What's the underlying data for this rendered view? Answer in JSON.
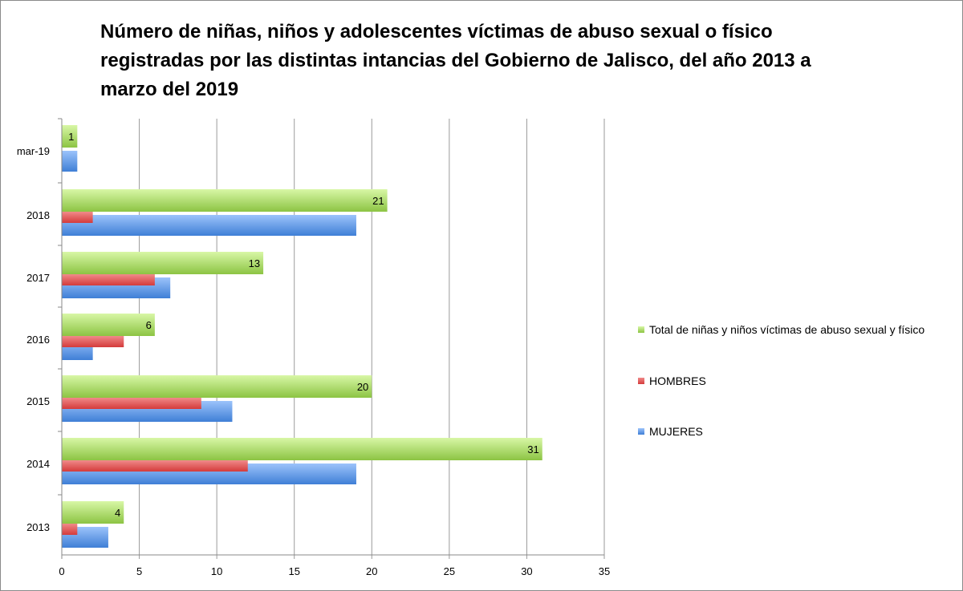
{
  "chart_data": {
    "type": "bar",
    "orientation": "horizontal",
    "title": "Número de niñas, niños y adolescentes víctimas de abuso sexual o físico registradas por las distintas intancias del Gobierno de Jalisco, del año 2013 a marzo del 2019",
    "categories": [
      "mar-19",
      "2018",
      "2017",
      "2016",
      "2015",
      "2014",
      "2013"
    ],
    "series": [
      {
        "name": "Total de niñas y niños víctimas de abuso sexual y físico",
        "color": "#9fd55a",
        "values": [
          1,
          21,
          13,
          6,
          20,
          31,
          4
        ],
        "labels": [
          "1",
          "21",
          "13",
          "6",
          "20",
          "31",
          "4"
        ]
      },
      {
        "name": "HOMBRES",
        "color": "#e04a4a",
        "values": [
          0,
          2,
          6,
          4,
          9,
          12,
          1
        ]
      },
      {
        "name": "MUJERES",
        "color": "#4f8fe0",
        "values": [
          1,
          19,
          7,
          2,
          11,
          19,
          3
        ]
      }
    ],
    "xlim": [
      0,
      35
    ],
    "xticks": [
      "0",
      "5",
      "10",
      "15",
      "20",
      "25",
      "30",
      "35"
    ],
    "xlabel": "",
    "ylabel": "",
    "grid": true,
    "legend_position": "right"
  }
}
